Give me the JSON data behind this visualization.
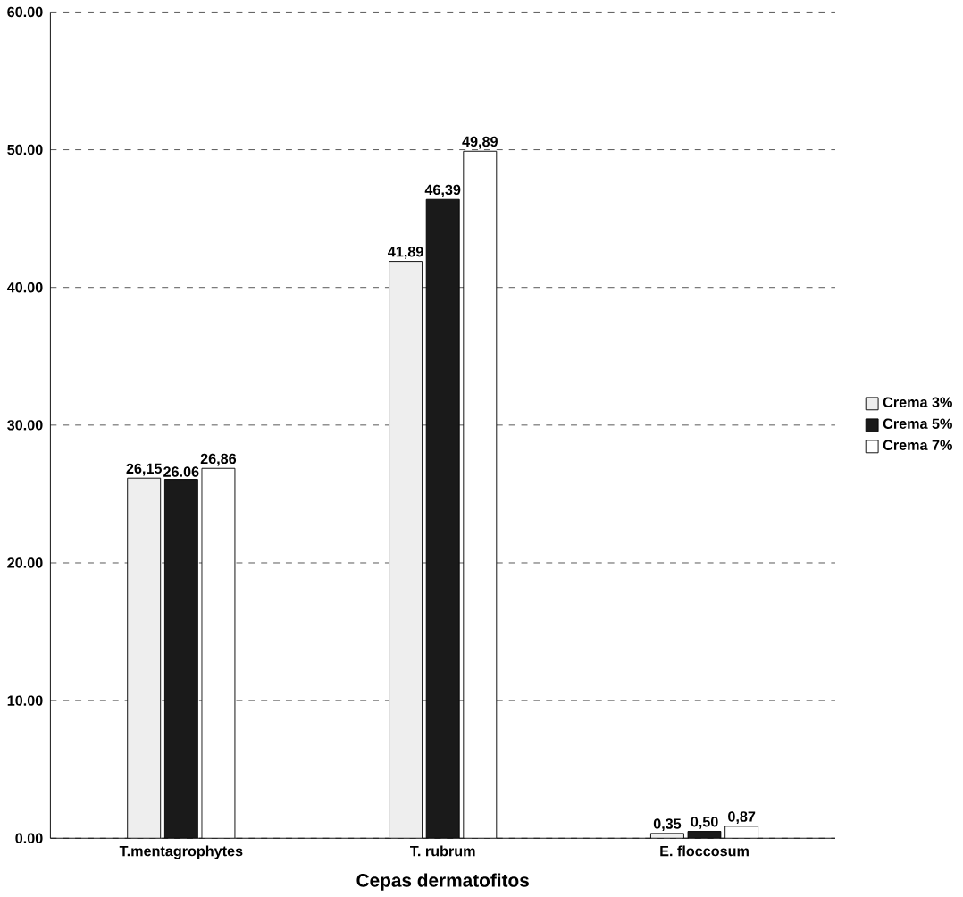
{
  "chart_data": {
    "type": "bar",
    "xlabel": "Cepas dermatofitos",
    "categories": [
      "T.mentagrophytes",
      "T. rubrum",
      "E. floccosum"
    ],
    "series": [
      {
        "name": "Crema 3%",
        "color": "#eeeeee",
        "values": [
          26.15,
          41.89,
          0.35
        ],
        "value_labels": [
          "26,15",
          "41,89",
          "0,35"
        ]
      },
      {
        "name": "Crema 5%",
        "color": "#1a1a1a",
        "values": [
          26.06,
          46.39,
          0.5
        ],
        "value_labels": [
          "26.06",
          "46,39",
          "0,50"
        ]
      },
      {
        "name": "Crema 7%",
        "color": "#ffffff",
        "values": [
          26.86,
          49.89,
          0.87
        ],
        "value_labels": [
          "26,86",
          "49,89",
          "0,87"
        ]
      }
    ],
    "ylim": [
      0,
      60
    ],
    "yticks": [
      {
        "value": 0,
        "label": "0.00"
      },
      {
        "value": 10,
        "label": "10.00"
      },
      {
        "value": 20,
        "label": "20.00"
      },
      {
        "value": 30,
        "label": "30.00"
      },
      {
        "value": 40,
        "label": "40.00"
      },
      {
        "value": 50,
        "label": "50.00"
      },
      {
        "value": 60,
        "label": "60.00"
      }
    ],
    "grid": "y",
    "legend": "right"
  }
}
